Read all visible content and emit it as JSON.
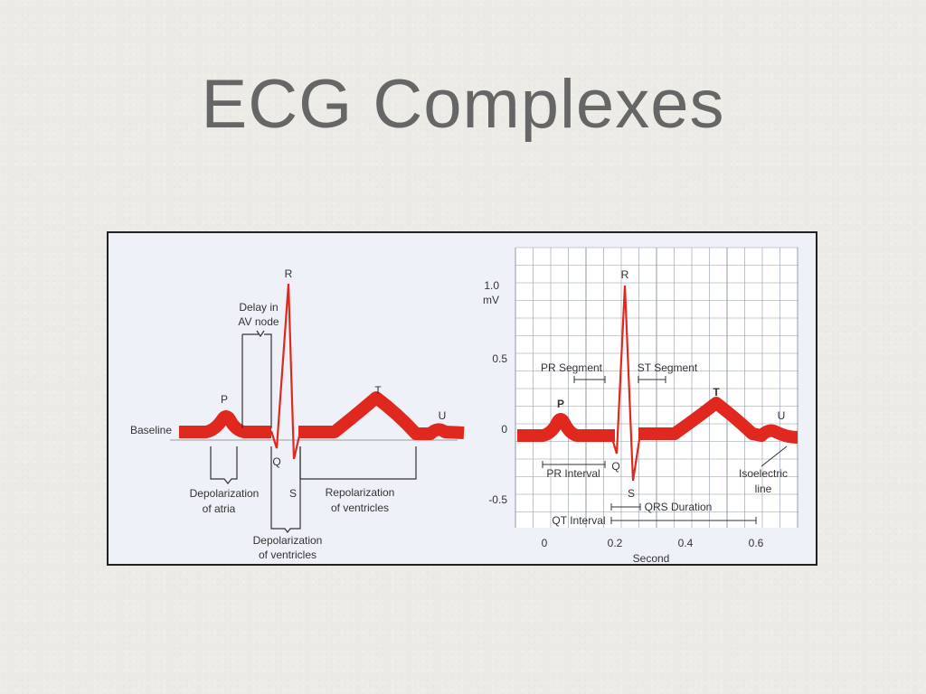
{
  "slide": {
    "title": "ECG Complexes"
  },
  "colors": {
    "waveform": "#e0281e",
    "grid": "#8f9aa8",
    "frame": "#222222",
    "panel": "#eef1f7"
  },
  "left_diagram": {
    "waves": {
      "p": "P",
      "q": "Q",
      "r": "R",
      "s": "S",
      "t": "T",
      "u": "U"
    },
    "baseline": "Baseline",
    "delay_line1": "Delay in",
    "delay_line2": "AV node",
    "dep_atria_line1": "Depolarization",
    "dep_atria_line2": "of atria",
    "dep_vent_line1": "Depolarization",
    "dep_vent_line2": "of ventricles",
    "repol_line1": "Repolarization",
    "repol_line2": "of ventricles"
  },
  "right_chart": {
    "y_unit_line1": "1.0",
    "y_unit_line2": "mV",
    "y_ticks": [
      "0.5",
      "0",
      "-0.5"
    ],
    "x_ticks": [
      "0",
      "0.2",
      "0.4",
      "0.6"
    ],
    "x_label": "Second",
    "waves": {
      "p": "P",
      "q": "Q",
      "r": "R",
      "s": "S",
      "t": "T",
      "u": "U"
    },
    "pr_segment": "PR Segment",
    "st_segment": "ST Segment",
    "pr_interval": "PR Interval",
    "qrs_duration": "QRS Duration",
    "qt_interval": "QT Interval",
    "isoelectric_line1": "Isoelectric",
    "isoelectric_line2": "line"
  }
}
